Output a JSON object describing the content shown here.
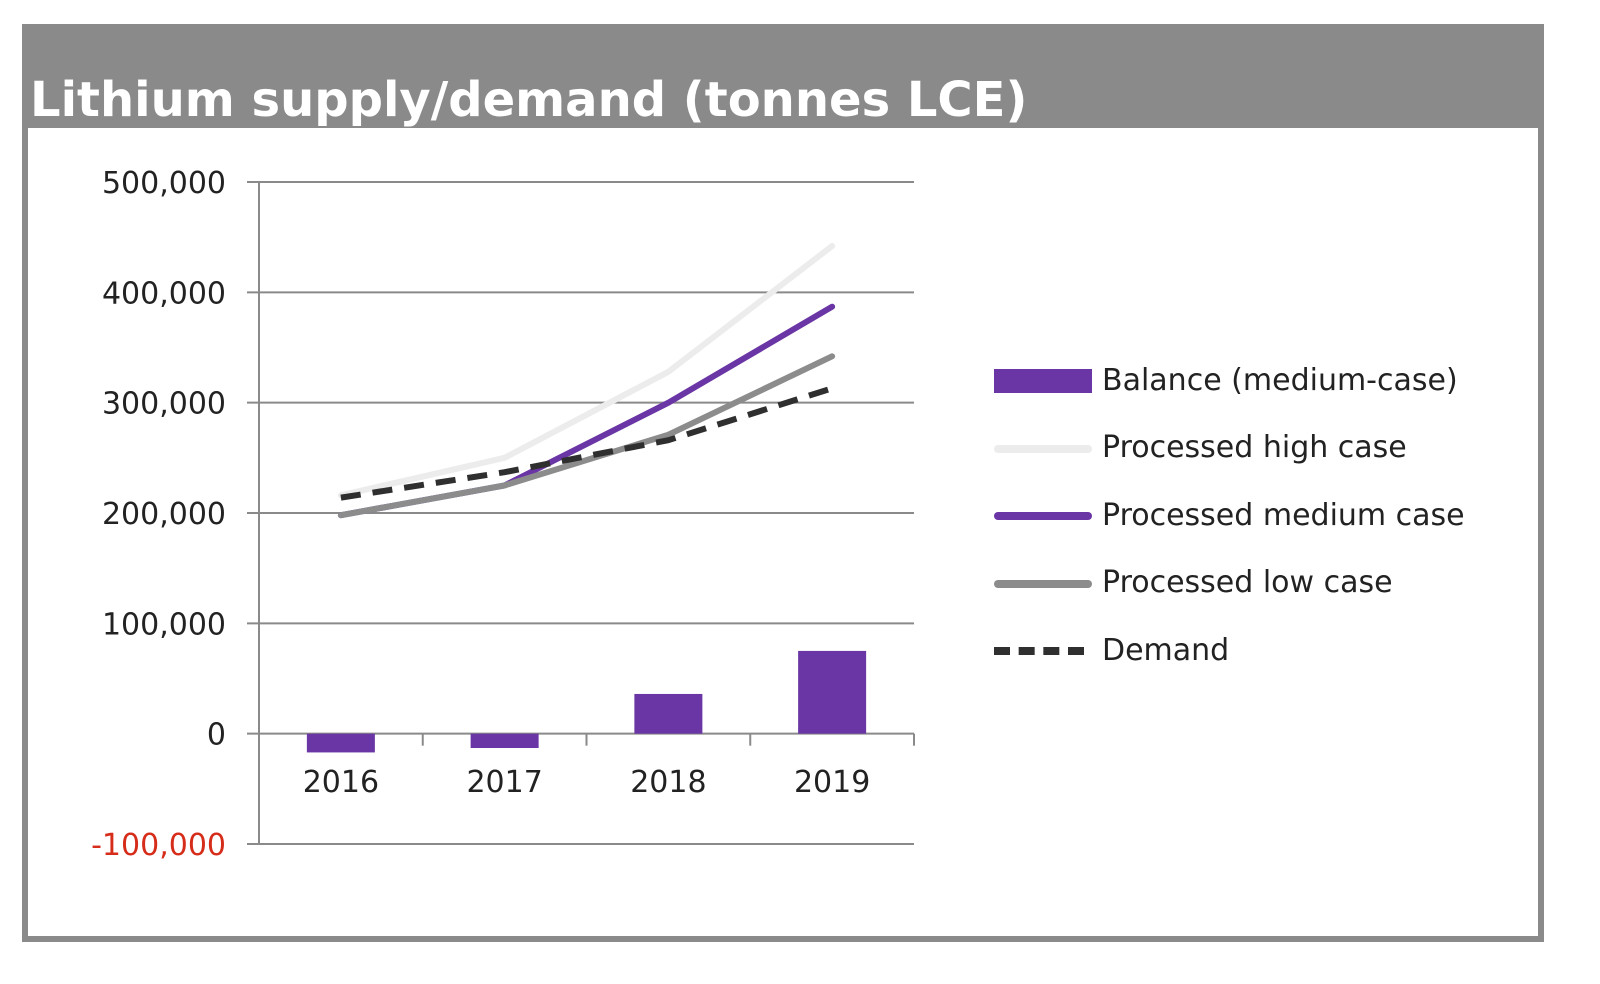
{
  "chart_data": {
    "type": "bar+line",
    "title": "Lithium supply/demand (tonnes LCE)",
    "categories": [
      "2016",
      "2017",
      "2018",
      "2019"
    ],
    "ylim": [
      -100000,
      500000
    ],
    "yticks": [
      {
        "value": 500000,
        "label": "500,000"
      },
      {
        "value": 400000,
        "label": "400,000"
      },
      {
        "value": 300000,
        "label": "300,000"
      },
      {
        "value": 200000,
        "label": "200,000"
      },
      {
        "value": 100000,
        "label": "100,000"
      },
      {
        "value": 0,
        "label": "0"
      },
      {
        "value": -100000,
        "label": "-100,000",
        "color": "#d62c1a"
      }
    ],
    "grid": true,
    "legend_position": "right",
    "bar_series": {
      "name": "Balance (medium-case)",
      "color": "#6a35a4",
      "values": [
        -17000,
        -13000,
        36000,
        75000
      ]
    },
    "line_series": [
      {
        "name": "Processed high case",
        "color": "#ececec",
        "style": "solid",
        "values": [
          216000,
          250000,
          328000,
          442000
        ]
      },
      {
        "name": "Processed medium case",
        "color": "#6a35a4",
        "style": "solid",
        "values": [
          198000,
          225000,
          300000,
          387000
        ]
      },
      {
        "name": "Processed low case",
        "color": "#8c8c8c",
        "style": "solid",
        "values": [
          198000,
          225000,
          271000,
          342000
        ]
      },
      {
        "name": "Demand",
        "color": "#2f2f2f",
        "style": "dashed",
        "values": [
          214000,
          237000,
          266000,
          313000
        ]
      }
    ]
  }
}
